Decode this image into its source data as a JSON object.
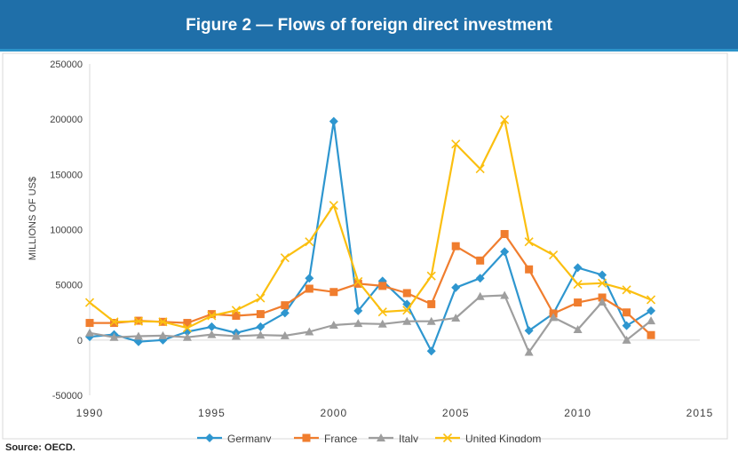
{
  "title": "Figure 2 — Flows of foreign direct investment",
  "source": "Source: OECD.",
  "chart_data": {
    "type": "line",
    "ylabel": "MILLIONS OF US$",
    "xlabel": "",
    "xlim": [
      1990,
      2015
    ],
    "ylim": [
      -50000,
      250000
    ],
    "xticks": [
      1990,
      1995,
      2000,
      2005,
      2010,
      2015
    ],
    "yticks": [
      -50000,
      0,
      50000,
      100000,
      150000,
      200000,
      250000
    ],
    "grid": false,
    "legend_position": "bottom",
    "x": [
      1990,
      1991,
      1992,
      1993,
      1994,
      1995,
      1996,
      1997,
      1998,
      1999,
      2000,
      2001,
      2002,
      2003,
      2004,
      2005,
      2006,
      2007,
      2008,
      2009,
      2010,
      2011,
      2012,
      2013
    ],
    "series": [
      {
        "name": "Germany",
        "color": "#2e96cf",
        "marker": "diamond",
        "values": [
          3000,
          5000,
          -1500,
          0,
          7500,
          12000,
          6500,
          12000,
          24500,
          56000,
          198000,
          26500,
          53500,
          32500,
          -10000,
          47500,
          56000,
          80000,
          8500,
          24000,
          65500,
          59000,
          13000,
          26500
        ]
      },
      {
        "name": "France",
        "color": "#f07d2e",
        "marker": "square",
        "values": [
          15500,
          15500,
          17500,
          16500,
          15500,
          23500,
          22000,
          23500,
          31500,
          46500,
          43500,
          51000,
          49000,
          42500,
          32500,
          85000,
          72000,
          96000,
          64000,
          24000,
          34000,
          38500,
          25000,
          4500
        ]
      },
      {
        "name": "Italy",
        "color": "#9e9e9e",
        "marker": "triangle",
        "values": [
          6500,
          2500,
          3500,
          4000,
          2500,
          5000,
          3500,
          4500,
          4000,
          7500,
          13500,
          15000,
          14500,
          17000,
          17000,
          20000,
          39500,
          40500,
          -11000,
          20500,
          9500,
          34500,
          0,
          17500
        ]
      },
      {
        "name": "United Kingdom",
        "color": "#fbbf10",
        "marker": "x",
        "values": [
          34000,
          16500,
          17000,
          16500,
          11000,
          22000,
          27000,
          38000,
          74500,
          89000,
          122000,
          53000,
          25500,
          27000,
          58000,
          177500,
          155000,
          199500,
          89000,
          77000,
          50500,
          51500,
          45500,
          36500
        ]
      }
    ]
  }
}
